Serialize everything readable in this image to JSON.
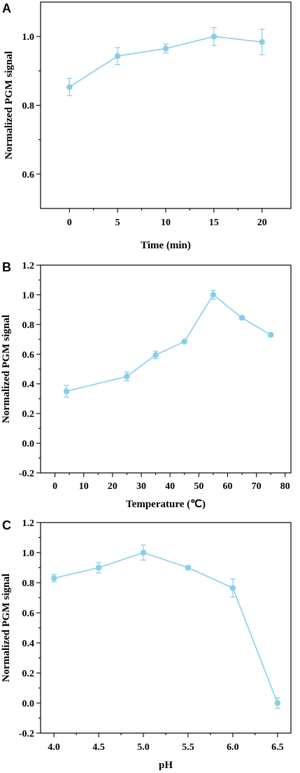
{
  "colors": {
    "series": "#87CEEB",
    "axis": "#000000"
  },
  "chart_data": [
    {
      "type": "line",
      "panel_label": "A",
      "xlabel": "Time (min)",
      "ylabel": "Normalized PGM signal",
      "xlim": [
        -3,
        23
      ],
      "ylim": [
        0.5,
        1.1
      ],
      "xticks": [
        0,
        5,
        10,
        15,
        20
      ],
      "xtick_labels": [
        "0",
        "5",
        "10",
        "15",
        "20"
      ],
      "yticks": [
        0.6,
        0.8,
        1.0
      ],
      "ytick_labels": [
        "0.6",
        "0.8",
        "1.0"
      ],
      "series": [
        {
          "x": [
            0,
            5,
            10,
            15,
            20
          ],
          "y": [
            0.853,
            0.943,
            0.965,
            1.0,
            0.984
          ],
          "err": [
            0.025,
            0.025,
            0.013,
            0.026,
            0.037
          ]
        }
      ]
    },
    {
      "type": "line",
      "panel_label": "B",
      "xlabel": "Temperature (℃)",
      "ylabel": "Normalized PGM signal",
      "xlim": [
        -5,
        82
      ],
      "ylim": [
        -0.2,
        1.2
      ],
      "xticks": [
        0,
        10,
        20,
        30,
        40,
        50,
        60,
        70,
        80
      ],
      "xtick_labels": [
        "0",
        "10",
        "20",
        "30",
        "40",
        "50",
        "60",
        "70",
        "80"
      ],
      "yticks": [
        -0.2,
        0.0,
        0.2,
        0.4,
        0.6,
        0.8,
        1.0,
        1.2
      ],
      "ytick_labels": [
        "-0.2",
        "0.0",
        "0.2",
        "0.4",
        "0.6",
        "0.8",
        "1.0",
        "1.2"
      ],
      "series": [
        {
          "x": [
            4,
            25,
            35,
            45,
            55,
            65,
            75
          ],
          "y": [
            0.35,
            0.45,
            0.595,
            0.685,
            1.0,
            0.845,
            0.73
          ],
          "err": [
            0.04,
            0.03,
            0.025,
            0.01,
            0.03,
            0.01,
            0.01
          ]
        }
      ]
    },
    {
      "type": "line",
      "panel_label": "C",
      "xlabel": "pH",
      "ylabel": "Normalized PGM signal",
      "xlim": [
        3.85,
        6.65
      ],
      "ylim": [
        -0.2,
        1.2
      ],
      "xticks": [
        4.0,
        4.5,
        5.0,
        5.5,
        6.0,
        6.5
      ],
      "xtick_labels": [
        "4.0",
        "4.5",
        "5.0",
        "5.5",
        "6.0",
        "6.5"
      ],
      "yticks": [
        -0.2,
        0.0,
        0.2,
        0.4,
        0.6,
        0.8,
        1.0,
        1.2
      ],
      "ytick_labels": [
        "-0.2",
        "0.0",
        "0.2",
        "0.4",
        "0.6",
        "0.8",
        "1.0",
        "1.2"
      ],
      "series": [
        {
          "x": [
            4.0,
            4.5,
            5.0,
            5.5,
            6.0,
            6.5
          ],
          "y": [
            0.83,
            0.9,
            1.0,
            0.9,
            0.765,
            0.0
          ],
          "err": [
            0.025,
            0.035,
            0.05,
            0.01,
            0.06,
            0.035
          ]
        }
      ]
    }
  ]
}
